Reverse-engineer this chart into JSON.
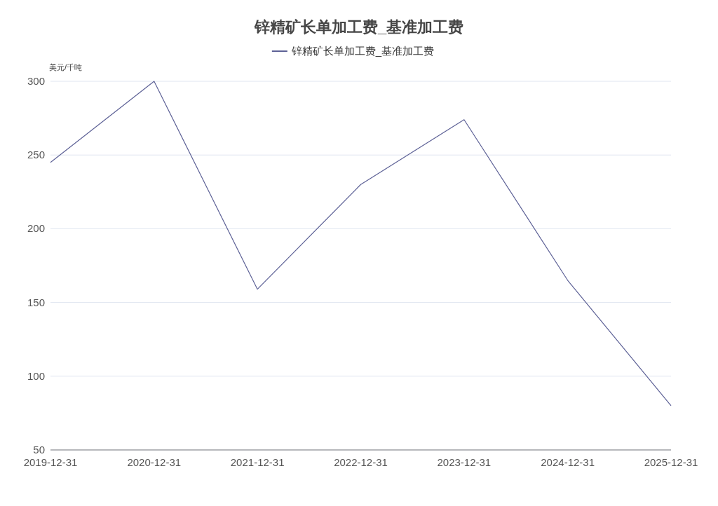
{
  "chart_data": {
    "type": "line",
    "title": "锌精矿长单加工费_基准加工费",
    "ylabel": "美元/千吨",
    "x": [
      "2019-12-31",
      "2020-12-31",
      "2021-12-31",
      "2022-12-31",
      "2023-12-31",
      "2024-12-31",
      "2025-12-31"
    ],
    "series": [
      {
        "name": "锌精矿长单加工费_基准加工费",
        "color": "#5d6196",
        "values": [
          245,
          300,
          159,
          230,
          274,
          165,
          80
        ]
      }
    ],
    "xlim": [
      "2019-12-31",
      "2025-12-31"
    ],
    "xticks": [
      "2019-12-31",
      "2020-12-31",
      "2021-12-31",
      "2022-12-31",
      "2023-12-31",
      "2024-12-31",
      "2025-12-31"
    ],
    "ylim": [
      50,
      300
    ],
    "yticks": [
      50,
      100,
      150,
      200,
      250,
      300
    ],
    "grid": "y",
    "legend": "top",
    "marker": "none",
    "line_style": "solid"
  }
}
